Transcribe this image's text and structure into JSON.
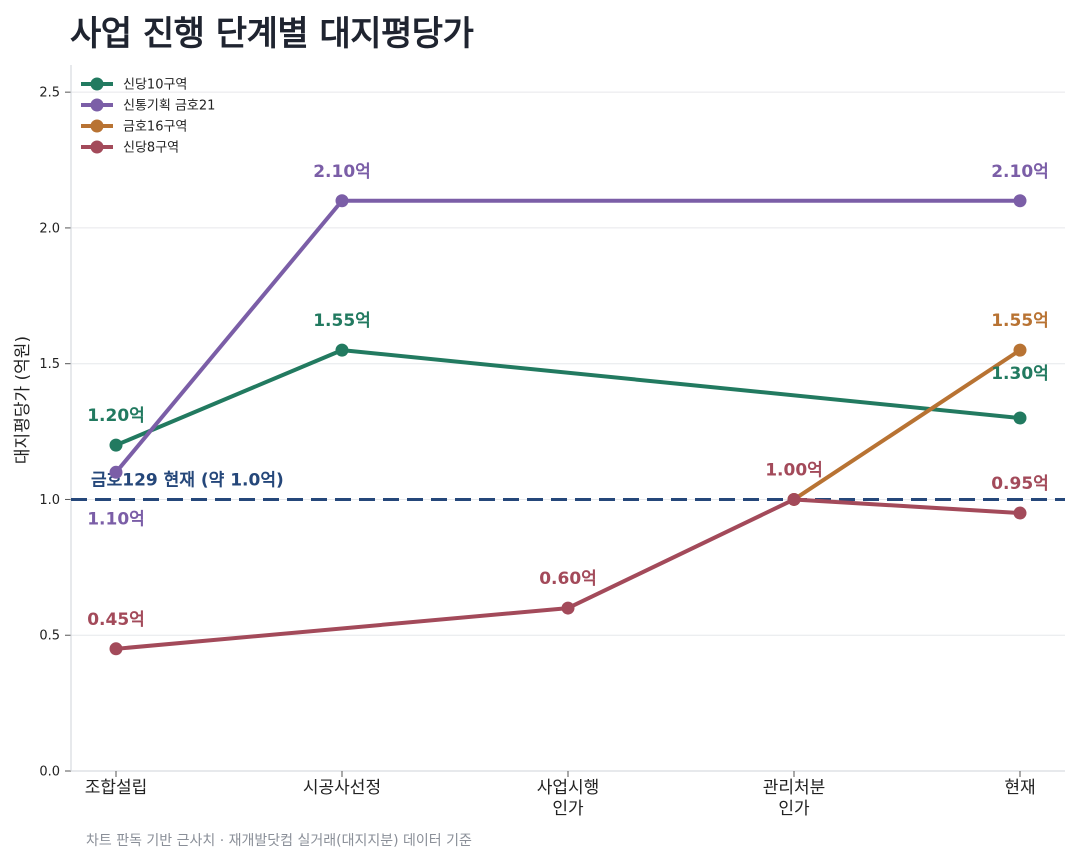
{
  "chart_data": {
    "type": "line",
    "title": "사업 진행 단계별 대지평당가",
    "xlabel": "",
    "ylabel": "대지평당가 (억원)",
    "categories": [
      "조합설립",
      "시공사선정",
      "사업시행\n인가",
      "관리처분\n인가",
      "현재"
    ],
    "ylim": [
      0,
      2.6
    ],
    "yticks": [
      "0.0",
      "0.5",
      "1.0",
      "1.5",
      "2.0",
      "2.5"
    ],
    "grid": "horizontal",
    "legend": "top-left",
    "series": [
      {
        "name": "신당10구역",
        "color": "#227a60",
        "values": [
          1.2,
          1.55,
          null,
          null,
          1.3
        ],
        "labels": [
          "1.20억",
          "1.55억",
          null,
          null,
          "1.30억"
        ]
      },
      {
        "name": "신통기획 금호21",
        "color": "#7b5ea7",
        "values": [
          1.1,
          2.1,
          null,
          null,
          2.1
        ],
        "labels": [
          "1.10억",
          "2.10억",
          null,
          null,
          "2.10억"
        ]
      },
      {
        "name": "금호16구역",
        "color": "#b87333",
        "values": [
          null,
          null,
          null,
          1.0,
          1.55
        ],
        "labels": [
          null,
          null,
          null,
          null,
          "1.55억"
        ]
      },
      {
        "name": "신당8구역",
        "color": "#a34a5a",
        "values": [
          0.45,
          null,
          0.6,
          1.0,
          0.95
        ],
        "labels": [
          "0.45억",
          null,
          "0.60억",
          "1.00억",
          "0.95억"
        ]
      }
    ],
    "reference_line": {
      "value": 1.0,
      "label": "금호129 현재 (약 1.0억)",
      "color": "#25477a"
    },
    "source": "차트 판독 기반 근사치 · 재개발닷컴 실거래(대지지분) 데이터 기준"
  }
}
